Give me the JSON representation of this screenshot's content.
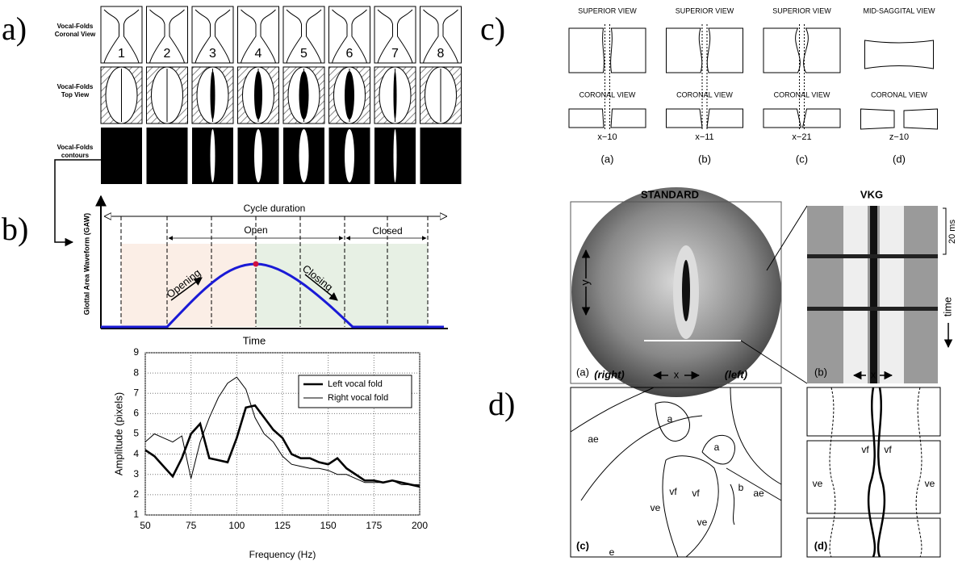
{
  "panel_labels": [
    "a)",
    "b)",
    "c)",
    "d)"
  ],
  "panel_a": {
    "row_labels": [
      [
        "Vocal-Folds",
        "Coronal View"
      ],
      [
        "Vocal-Folds",
        "Top View"
      ],
      [
        "Vocal-Folds",
        "contours"
      ]
    ],
    "phases": [
      "1",
      "2",
      "3",
      "4",
      "5",
      "6",
      "7",
      "8"
    ]
  },
  "panel_b": {
    "y_label": "Glottal Area Waveform (GAW)",
    "x_label": "Time",
    "cycle": "Cycle duration",
    "open": "Open",
    "closed": "Closed",
    "opening": "Opening",
    "closing": "Closing"
  },
  "chart_data": {
    "type": "line",
    "x_label": "Frequency (Hz)",
    "y_label": "Amplitude (pixels)",
    "x": [
      50,
      55,
      60,
      65,
      70,
      75,
      80,
      85,
      90,
      95,
      100,
      105,
      110,
      115,
      120,
      125,
      130,
      135,
      140,
      145,
      150,
      155,
      160,
      165,
      170,
      175,
      180,
      185,
      190,
      195,
      200
    ],
    "xlim": [
      50,
      200
    ],
    "xticks": [
      50,
      75,
      100,
      125,
      150,
      175,
      200
    ],
    "ylim": [
      1,
      9
    ],
    "yticks": [
      1,
      2,
      3,
      4,
      5,
      6,
      7,
      8,
      9
    ],
    "grid": true,
    "legend": "upper right",
    "series": [
      {
        "name": "Left vocal fold",
        "color": "#000000",
        "values": [
          4.2,
          3.9,
          3.4,
          2.9,
          3.8,
          5.0,
          5.5,
          3.8,
          3.7,
          3.6,
          4.8,
          6.3,
          6.4,
          5.8,
          5.2,
          4.8,
          4.0,
          3.8,
          3.8,
          3.6,
          3.5,
          3.8,
          3.3,
          3.0,
          2.7,
          2.7,
          2.6,
          2.7,
          2.6,
          2.5,
          2.4
        ]
      },
      {
        "name": "Right vocal fold",
        "color": "#000000",
        "values": [
          4.6,
          5.0,
          4.8,
          4.6,
          4.9,
          2.8,
          4.6,
          5.8,
          6.8,
          7.5,
          7.8,
          7.2,
          5.8,
          5.0,
          4.6,
          3.9,
          3.5,
          3.4,
          3.3,
          3.3,
          3.2,
          3.0,
          3.0,
          2.8,
          2.6,
          2.6,
          2.6,
          2.7,
          2.5,
          2.5,
          2.5
        ]
      }
    ]
  },
  "panel_c": {
    "columns": [
      {
        "top": "SUPERIOR VIEW",
        "bottom": "CORONAL VIEW",
        "code": "x−10",
        "letter": "(a)"
      },
      {
        "top": "SUPERIOR VIEW",
        "bottom": "CORONAL VIEW",
        "code": "x−11",
        "letter": "(b)"
      },
      {
        "top": "SUPERIOR VIEW",
        "bottom": "CORONAL VIEW",
        "code": "x−21",
        "letter": "(c)"
      },
      {
        "top": "MID-SAGGITAL VIEW",
        "bottom": "CORONAL VIEW",
        "code": "z−10",
        "letter": "(d)"
      }
    ]
  },
  "panel_d": {
    "standard": "STANDARD",
    "vkg": "VKG",
    "right": "(right)",
    "left": "(left)",
    "x": "x",
    "y": "y",
    "time": "time",
    "ms": "20 ms",
    "sub": [
      "(a)",
      "(b)",
      "(c)",
      "(d)"
    ],
    "sketch_c": [
      "a",
      "a",
      "ae",
      "ae",
      "vf",
      "vf",
      "ve",
      "ve",
      "b",
      "e"
    ],
    "sketch_d": [
      "vf",
      "vf",
      "ve",
      "ve"
    ]
  }
}
